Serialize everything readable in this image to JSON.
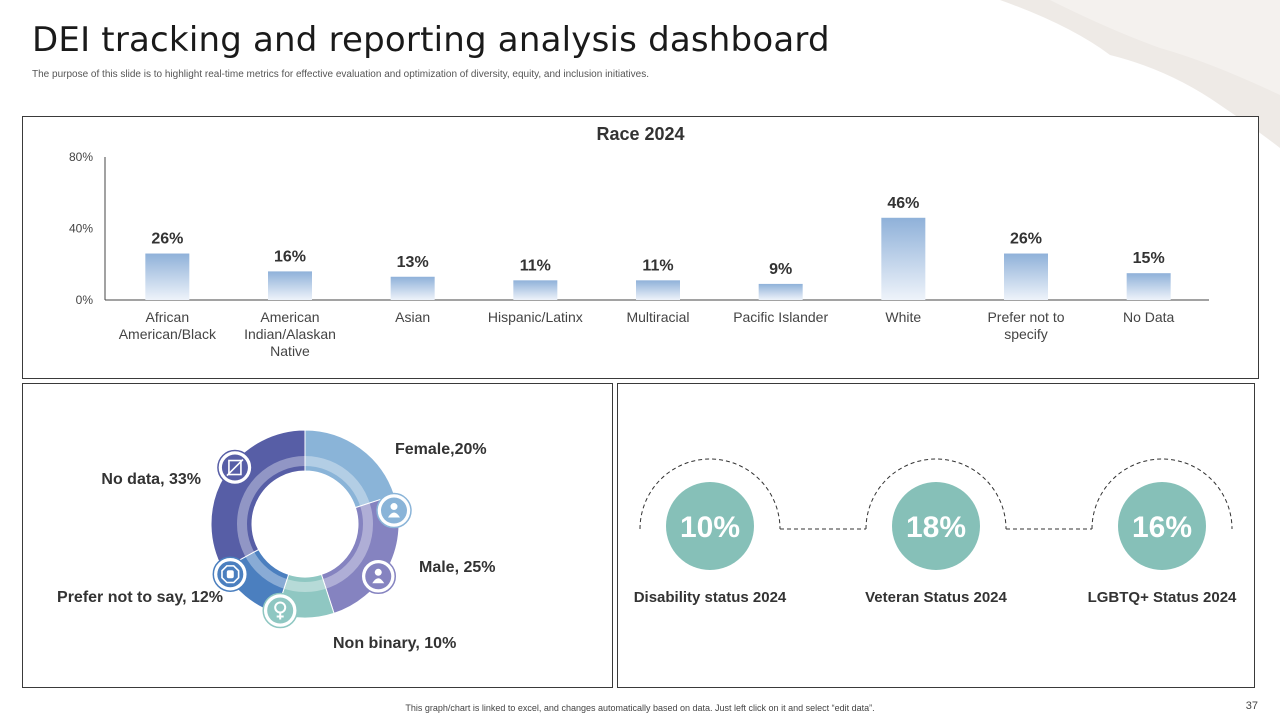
{
  "page": {
    "title": "DEI tracking and reporting analysis dashboard",
    "subtitle": "The purpose of this slide is to highlight real-time metrics for effective evaluation and optimization of diversity, equity, and inclusion initiatives.",
    "footer": "This graph/chart is linked to excel, and changes automatically based on data. Just left click on it and select “edit data”.",
    "page_number": "37"
  },
  "colors": {
    "bar_top": "#8fb1d9",
    "bar_bottom": "#eef3fa",
    "teal": "#86c0b8",
    "female": "#8ab4d8",
    "male": "#8583c0",
    "non_binary": "#8fc7c2",
    "prefer_not": "#4b7fbf",
    "no_data": "#575ea6"
  },
  "chart_data": [
    {
      "type": "bar",
      "title": "Race 2024",
      "categories": [
        [
          "African",
          "American/Black"
        ],
        [
          "American",
          "Indian/Alaskan",
          "Native"
        ],
        [
          "Asian"
        ],
        [
          "Hispanic/Latinx"
        ],
        [
          "Multiracial"
        ],
        [
          "Pacific Islander"
        ],
        [
          "White"
        ],
        [
          "Prefer not to",
          "specify"
        ],
        [
          "No Data"
        ]
      ],
      "values": [
        26,
        16,
        13,
        11,
        11,
        9,
        46,
        26,
        15
      ],
      "data_labels": [
        "26%",
        "16%",
        "13%",
        "11%",
        "11%",
        "9%",
        "46%",
        "26%",
        "15%"
      ],
      "ylim": [
        0,
        80
      ],
      "yticks": [
        0,
        40,
        80
      ],
      "ytick_labels": [
        "0%",
        "40%",
        "80%"
      ],
      "xlabel": "",
      "ylabel": ""
    },
    {
      "type": "pie",
      "subtype": "donut",
      "slices": [
        {
          "name": "Female",
          "value": 20,
          "label": "Female,20%",
          "icon": "female-person-icon",
          "color_key": "female"
        },
        {
          "name": "Male",
          "value": 25,
          "label": "Male, 25%",
          "icon": "male-person-icon",
          "color_key": "male"
        },
        {
          "name": "Non binary",
          "value": 10,
          "label": "Non binary, 10%",
          "icon": "venus-symbol-icon",
          "color_key": "non_binary"
        },
        {
          "name": "Prefer not to say",
          "value": 12,
          "label": "Prefer not to say, 12%",
          "icon": "stop-hand-icon",
          "color_key": "prefer_not"
        },
        {
          "name": "No data",
          "value": 33,
          "label": "No data, 33%",
          "icon": "no-data-icon",
          "color_key": "no_data"
        }
      ]
    }
  ],
  "status": [
    {
      "value": "10%",
      "label": "Disability status 2024"
    },
    {
      "value": "18%",
      "label": "Veteran Status 2024"
    },
    {
      "value": "16%",
      "label": "LGBTQ+ Status 2024"
    }
  ]
}
